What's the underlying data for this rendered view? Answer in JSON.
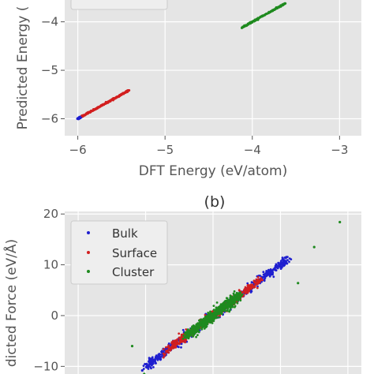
{
  "chart_data": [
    {
      "type": "scatter",
      "title": "",
      "xlabel": "DFT Energy (eV/atom)",
      "ylabel": "Predicted Energy (",
      "xlim": [
        -6.15,
        -2.75
      ],
      "ylim": [
        -6.35,
        -3.55
      ],
      "xticks": [
        -6,
        -5,
        -4,
        -3
      ],
      "xtick_labels": [
        "−6",
        "−5",
        "−4",
        "−3"
      ],
      "yticks": [
        -6,
        -5,
        -4
      ],
      "ytick_labels": [
        "−6",
        "−5",
        "−4"
      ],
      "grid": true,
      "legend": "top-left",
      "series": [
        {
          "color": "#1f1fcf",
          "x": [
            -6.0,
            -5.99,
            -5.98,
            -5.97,
            -5.96
          ],
          "y": [
            -6.0,
            -5.99,
            -5.98,
            -5.97,
            -5.96
          ]
        },
        {
          "color": "#d21f1f",
          "x": [
            -5.95,
            -5.9,
            -5.85,
            -5.8,
            -5.75,
            -5.7,
            -5.65,
            -5.6,
            -5.55,
            -5.5,
            -5.45,
            -5.41
          ],
          "y": [
            -5.95,
            -5.9,
            -5.85,
            -5.8,
            -5.75,
            -5.7,
            -5.65,
            -5.6,
            -5.55,
            -5.5,
            -5.45,
            -5.41
          ]
        },
        {
          "color": "#1f8a1f",
          "x": [
            -4.12,
            -4.05,
            -3.98,
            -3.9,
            -3.82,
            -3.75,
            -3.68,
            -3.62
          ],
          "y": [
            -4.12,
            -4.05,
            -3.98,
            -3.9,
            -3.82,
            -3.75,
            -3.68,
            -3.62
          ]
        }
      ]
    },
    {
      "type": "scatter",
      "title": "(b)",
      "xlabel": "",
      "ylabel": "dicted Force (eV/Å)",
      "xlim": [
        -22,
        22
      ],
      "ylim": [
        -11.5,
        20.5
      ],
      "yticks": [
        -10,
        0,
        10,
        20
      ],
      "ytick_labels": [
        "−10",
        "0",
        "10",
        "20"
      ],
      "grid": true,
      "legend": "top-left",
      "series": [
        {
          "name": "Bulk",
          "color": "#1f1fcf",
          "x_range": [
            -10,
            11
          ],
          "outliers": [
            [
              -10.5,
              -10.8
            ],
            [
              -9.8,
              -10.2
            ]
          ]
        },
        {
          "name": "Surface",
          "color": "#d21f1f",
          "x_range": [
            -7,
            7
          ]
        },
        {
          "name": "Cluster",
          "color": "#1f8a1f",
          "x_range": [
            -4,
            4
          ],
          "outliers": [
            [
              -12,
              -6
            ],
            [
              -10.2,
              -11.5
            ],
            [
              12.6,
              6.4
            ],
            [
              15,
              13.5
            ],
            [
              18.8,
              18.4
            ]
          ]
        }
      ]
    }
  ]
}
